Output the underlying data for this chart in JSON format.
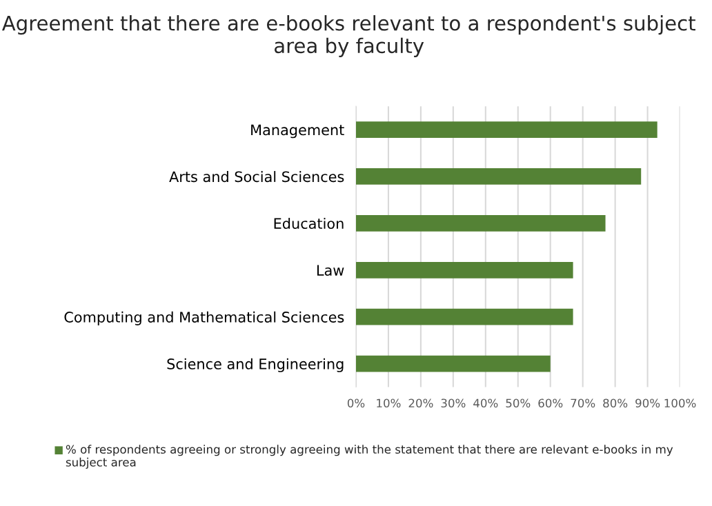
{
  "chart_data": {
    "type": "bar",
    "orientation": "horizontal",
    "title": "Agreement that there are e-books relevant to a respondent's subject area by faculty",
    "categories": [
      "Management",
      "Arts and Social Sciences",
      "Education",
      "Law",
      "Computing and Mathematical Sciences",
      "Science and Engineering"
    ],
    "series": [
      {
        "name": "% of respondents agreeing or strongly agreeing with the statement that there are relevant e-books in my subject area",
        "color": "#548235",
        "values": [
          93,
          88,
          77,
          67,
          67,
          60
        ]
      }
    ],
    "xlim": [
      0,
      100
    ],
    "xticks": [
      {
        "value": 0,
        "label": "0%"
      },
      {
        "value": 10,
        "label": "10%"
      },
      {
        "value": 20,
        "label": "20%"
      },
      {
        "value": 30,
        "label": "30%"
      },
      {
        "value": 40,
        "label": "40%"
      },
      {
        "value": 50,
        "label": "50%"
      },
      {
        "value": 60,
        "label": "60%"
      },
      {
        "value": 70,
        "label": "70%"
      },
      {
        "value": 80,
        "label": "80%"
      },
      {
        "value": 90,
        "label": "90%"
      },
      {
        "value": 100,
        "label": "100%"
      }
    ],
    "grid": "x",
    "legend": "bottom"
  }
}
